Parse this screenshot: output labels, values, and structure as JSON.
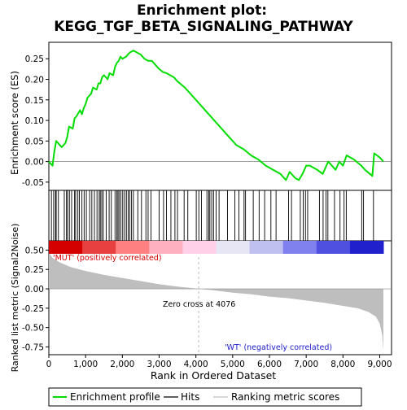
{
  "chart_data": {
    "type": "line",
    "title_line1": "Enrichment plot:",
    "title_line2": "KEGG_TGF_BETA_SIGNALING_PATHWAY",
    "es_panel": {
      "ylabel": "Enrichment score (ES)",
      "ylim": [
        -0.07,
        0.29
      ],
      "yticks": [
        -0.05,
        0.0,
        0.05,
        0.1,
        0.15,
        0.2,
        0.25
      ],
      "ytick_labels": [
        "-0.05",
        "0.00",
        "0.05",
        "0.10",
        "0.15",
        "0.20",
        "0.25"
      ],
      "line_color": "#00dd00",
      "points": [
        [
          0,
          0.0
        ],
        [
          100,
          -0.01
        ],
        [
          150,
          0.025
        ],
        [
          200,
          0.05
        ],
        [
          350,
          0.035
        ],
        [
          450,
          0.045
        ],
        [
          500,
          0.06
        ],
        [
          550,
          0.085
        ],
        [
          650,
          0.08
        ],
        [
          700,
          0.105
        ],
        [
          750,
          0.11
        ],
        [
          850,
          0.125
        ],
        [
          900,
          0.115
        ],
        [
          950,
          0.13
        ],
        [
          1000,
          0.14
        ],
        [
          1050,
          0.155
        ],
        [
          1150,
          0.165
        ],
        [
          1200,
          0.18
        ],
        [
          1300,
          0.175
        ],
        [
          1350,
          0.19
        ],
        [
          1400,
          0.19
        ],
        [
          1450,
          0.205
        ],
        [
          1500,
          0.21
        ],
        [
          1600,
          0.2
        ],
        [
          1650,
          0.215
        ],
        [
          1750,
          0.21
        ],
        [
          1800,
          0.23
        ],
        [
          1850,
          0.24
        ],
        [
          1900,
          0.245
        ],
        [
          1950,
          0.255
        ],
        [
          2000,
          0.25
        ],
        [
          2100,
          0.255
        ],
        [
          2150,
          0.26
        ],
        [
          2200,
          0.265
        ],
        [
          2300,
          0.27
        ],
        [
          2400,
          0.265
        ],
        [
          2500,
          0.26
        ],
        [
          2600,
          0.25
        ],
        [
          2700,
          0.245
        ],
        [
          2800,
          0.245
        ],
        [
          2900,
          0.235
        ],
        [
          3000,
          0.225
        ],
        [
          3100,
          0.218
        ],
        [
          3200,
          0.215
        ],
        [
          3300,
          0.21
        ],
        [
          3400,
          0.205
        ],
        [
          3500,
          0.195
        ],
        [
          3700,
          0.18
        ],
        [
          3900,
          0.16
        ],
        [
          4100,
          0.14
        ],
        [
          4300,
          0.12
        ],
        [
          4500,
          0.1
        ],
        [
          4700,
          0.08
        ],
        [
          4900,
          0.06
        ],
        [
          5100,
          0.04
        ],
        [
          5300,
          0.03
        ],
        [
          5500,
          0.015
        ],
        [
          5700,
          0.005
        ],
        [
          5900,
          -0.01
        ],
        [
          6100,
          -0.02
        ],
        [
          6300,
          -0.03
        ],
        [
          6450,
          -0.045
        ],
        [
          6550,
          -0.025
        ],
        [
          6700,
          -0.04
        ],
        [
          6800,
          -0.045
        ],
        [
          6900,
          -0.03
        ],
        [
          7000,
          -0.01
        ],
        [
          7100,
          -0.01
        ],
        [
          7300,
          -0.02
        ],
        [
          7450,
          -0.03
        ],
        [
          7550,
          -0.01
        ],
        [
          7600,
          0.0
        ],
        [
          7700,
          -0.01
        ],
        [
          7800,
          -0.02
        ],
        [
          7900,
          0.0
        ],
        [
          8000,
          -0.01
        ],
        [
          8100,
          0.015
        ],
        [
          8300,
          0.005
        ],
        [
          8500,
          -0.01
        ],
        [
          8600,
          -0.02
        ],
        [
          8800,
          -0.035
        ],
        [
          8850,
          0.02
        ],
        [
          9000,
          0.01
        ],
        [
          9100,
          0.0
        ]
      ]
    },
    "hits": [
      70,
      130,
      180,
      200,
      260,
      420,
      480,
      510,
      560,
      620,
      700,
      730,
      790,
      830,
      900,
      960,
      1020,
      1110,
      1170,
      1240,
      1310,
      1370,
      1400,
      1440,
      1480,
      1560,
      1640,
      1700,
      1800,
      1850,
      1880,
      1910,
      1960,
      2010,
      2060,
      2110,
      2160,
      2200,
      2250,
      2300,
      2420,
      2520,
      2640,
      2700,
      2780,
      3000,
      3120,
      3200,
      3320,
      3430,
      3500,
      3680,
      3780,
      4010,
      4080,
      4150,
      4300,
      4350,
      4380,
      4430,
      4480,
      4550,
      4630,
      4860,
      5060,
      5170,
      5310,
      5350,
      5560,
      5720,
      5870,
      6040,
      6180,
      6520,
      6600,
      6840,
      6920,
      6980,
      7040,
      7360,
      7460,
      7540,
      7590,
      7770,
      7920,
      8030,
      8090,
      8510,
      8560,
      8830
    ],
    "gene_count": 9100,
    "color_bar": [
      "#d40000",
      "#e84040",
      "#ff8080",
      "#ffb0c0",
      "#ffd0e8",
      "#e6e6f5",
      "#c0c0f0",
      "#8080ee",
      "#5050e0",
      "#2020cc"
    ],
    "label_pos": "'MUT' (positively correlated)",
    "label_neg": "'WT' (negatively correlated)",
    "metric_panel": {
      "ylabel": "Ranked list metric (Signal2Noise)",
      "ylim": [
        -0.85,
        0.62
      ],
      "yticks": [
        -0.75,
        -0.5,
        -0.25,
        0.0,
        0.25,
        0.5
      ],
      "ytick_labels": [
        "-0.75",
        "-0.50",
        "-0.25",
        "0.00",
        "0.25",
        "0.50"
      ],
      "fill_color": "#bebebe",
      "curve": [
        [
          0,
          0.55
        ],
        [
          30,
          0.45
        ],
        [
          100,
          0.4
        ],
        [
          300,
          0.34
        ],
        [
          600,
          0.28
        ],
        [
          1000,
          0.23
        ],
        [
          1500,
          0.18
        ],
        [
          2000,
          0.14
        ],
        [
          2500,
          0.1
        ],
        [
          3000,
          0.06
        ],
        [
          3500,
          0.03
        ],
        [
          4076,
          0.0
        ],
        [
          4500,
          -0.02
        ],
        [
          5000,
          -0.05
        ],
        [
          5500,
          -0.07
        ],
        [
          6000,
          -0.1
        ],
        [
          6500,
          -0.12
        ],
        [
          7000,
          -0.15
        ],
        [
          7500,
          -0.18
        ],
        [
          8000,
          -0.22
        ],
        [
          8400,
          -0.25
        ],
        [
          8700,
          -0.3
        ],
        [
          8900,
          -0.36
        ],
        [
          9000,
          -0.45
        ],
        [
          9070,
          -0.6
        ],
        [
          9100,
          -0.8
        ]
      ],
      "zero_cross": 4076,
      "zero_cross_label": "Zero cross at 4076"
    },
    "xlabel": "Rank in Ordered Dataset",
    "xlim": [
      0,
      9100
    ],
    "xticks": [
      0,
      1000,
      2000,
      3000,
      4000,
      5000,
      6000,
      7000,
      8000,
      9000
    ],
    "xtick_labels": [
      "0",
      "1,000",
      "2,000",
      "3,000",
      "4,000",
      "5,000",
      "6,000",
      "7,000",
      "8,000",
      "9,000"
    ],
    "legend": [
      {
        "label": "Enrichment profile",
        "color": "#00dd00"
      },
      {
        "label": "Hits",
        "color": "#000000"
      },
      {
        "label": "Ranking metric scores",
        "color": "#bebebe"
      }
    ]
  }
}
